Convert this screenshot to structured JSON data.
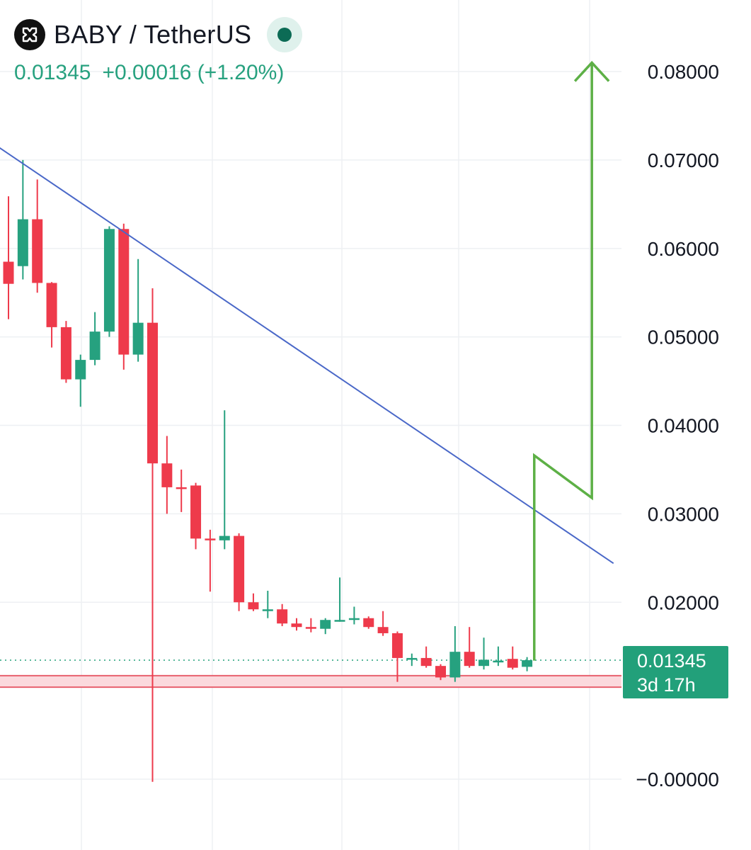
{
  "header": {
    "pair": "BABY / TetherUS",
    "last_price": "0.01345",
    "change": "+0.00016",
    "change_pct": "(+1.20%)",
    "logo_icon": "baby-token-logo-icon",
    "status_icon": "market-open-dot-icon"
  },
  "price_tag": {
    "price": "0.01345",
    "countdown": "3d 17h"
  },
  "colors": {
    "up": "#26a17f",
    "down": "#ee3a4b",
    "trendline": "#4a68c8",
    "projection": "#5db046",
    "support": "#e8606e",
    "tag_bg": "#22a07a",
    "grid": "#eef0f3"
  },
  "chart_data": {
    "type": "candlestick",
    "title": "",
    "xlabel": "",
    "ylabel": "",
    "ylim": [
      -0.0002,
      0.0853
    ],
    "y_ticks": [
      "0.08000",
      "0.07000",
      "0.06000",
      "0.05000",
      "0.04000",
      "0.03000",
      "0.02000",
      "−0.00000"
    ],
    "y_tick_values": [
      0.08,
      0.07,
      0.06,
      0.05,
      0.04,
      0.03,
      0.02,
      0.0
    ],
    "grid": true,
    "current_price": 0.01345,
    "candles": [
      {
        "o": 0.0585,
        "h": 0.0659,
        "l": 0.052,
        "c": 0.056
      },
      {
        "o": 0.058,
        "h": 0.07,
        "l": 0.0565,
        "c": 0.0633
      },
      {
        "o": 0.0633,
        "h": 0.0678,
        "l": 0.055,
        "c": 0.0561
      },
      {
        "o": 0.0561,
        "h": 0.0562,
        "l": 0.0488,
        "c": 0.0511
      },
      {
        "o": 0.0511,
        "h": 0.0518,
        "l": 0.0448,
        "c": 0.0452
      },
      {
        "o": 0.0452,
        "h": 0.048,
        "l": 0.0421,
        "c": 0.0474
      },
      {
        "o": 0.0474,
        "h": 0.0528,
        "l": 0.0468,
        "c": 0.0506
      },
      {
        "o": 0.0506,
        "h": 0.0625,
        "l": 0.05,
        "c": 0.0622
      },
      {
        "o": 0.0622,
        "h": 0.0628,
        "l": 0.0463,
        "c": 0.048
      },
      {
        "o": 0.048,
        "h": 0.0588,
        "l": 0.0472,
        "c": 0.0516
      },
      {
        "o": 0.0516,
        "h": 0.0555,
        "l": -0.0003,
        "c": 0.0357
      },
      {
        "o": 0.0357,
        "h": 0.0388,
        "l": 0.03,
        "c": 0.033
      },
      {
        "o": 0.033,
        "h": 0.035,
        "l": 0.0302,
        "c": 0.0328
      },
      {
        "o": 0.0332,
        "h": 0.0335,
        "l": 0.026,
        "c": 0.0272
      },
      {
        "o": 0.0272,
        "h": 0.0282,
        "l": 0.0212,
        "c": 0.027
      },
      {
        "o": 0.027,
        "h": 0.0417,
        "l": 0.026,
        "c": 0.0275
      },
      {
        "o": 0.0275,
        "h": 0.0278,
        "l": 0.019,
        "c": 0.02
      },
      {
        "o": 0.02,
        "h": 0.021,
        "l": 0.019,
        "c": 0.0192
      },
      {
        "o": 0.0192,
        "h": 0.0213,
        "l": 0.0182,
        "c": 0.0192
      },
      {
        "o": 0.0192,
        "h": 0.0198,
        "l": 0.0173,
        "c": 0.0176
      },
      {
        "o": 0.0176,
        "h": 0.0182,
        "l": 0.0168,
        "c": 0.0172
      },
      {
        "o": 0.0172,
        "h": 0.0182,
        "l": 0.0166,
        "c": 0.017
      },
      {
        "o": 0.017,
        "h": 0.0182,
        "l": 0.0164,
        "c": 0.018
      },
      {
        "o": 0.018,
        "h": 0.0228,
        "l": 0.0178,
        "c": 0.018
      },
      {
        "o": 0.018,
        "h": 0.0195,
        "l": 0.0175,
        "c": 0.0182
      },
      {
        "o": 0.0182,
        "h": 0.0184,
        "l": 0.017,
        "c": 0.0172
      },
      {
        "o": 0.0172,
        "h": 0.019,
        "l": 0.0162,
        "c": 0.0165
      },
      {
        "o": 0.0165,
        "h": 0.0167,
        "l": 0.011,
        "c": 0.0137
      },
      {
        "o": 0.0137,
        "h": 0.0142,
        "l": 0.0128,
        "c": 0.0137
      },
      {
        "o": 0.0137,
        "h": 0.015,
        "l": 0.0126,
        "c": 0.0128
      },
      {
        "o": 0.0128,
        "h": 0.013,
        "l": 0.0112,
        "c": 0.0115
      },
      {
        "o": 0.0115,
        "h": 0.0173,
        "l": 0.011,
        "c": 0.0144
      },
      {
        "o": 0.0144,
        "h": 0.0172,
        "l": 0.0126,
        "c": 0.0128
      },
      {
        "o": 0.0128,
        "h": 0.016,
        "l": 0.0124,
        "c": 0.0135
      },
      {
        "o": 0.0134,
        "h": 0.015,
        "l": 0.0128,
        "c": 0.0134
      },
      {
        "o": 0.0136,
        "h": 0.015,
        "l": 0.0124,
        "c": 0.0126
      },
      {
        "o": 0.0127,
        "h": 0.0138,
        "l": 0.0122,
        "c": 0.01345
      }
    ],
    "support_zone": {
      "from": 0.0104,
      "to": 0.0117
    },
    "trendline": [
      {
        "i": -1.0,
        "p": 0.0718
      },
      {
        "i": 42.0,
        "p": 0.0244
      }
    ],
    "projection_path": [
      {
        "i": 36.5,
        "p": 0.0134
      },
      {
        "i": 36.5,
        "p": 0.0366
      },
      {
        "i": 40.5,
        "p": 0.0318
      },
      {
        "i": 40.5,
        "p": 0.081
      }
    ]
  }
}
